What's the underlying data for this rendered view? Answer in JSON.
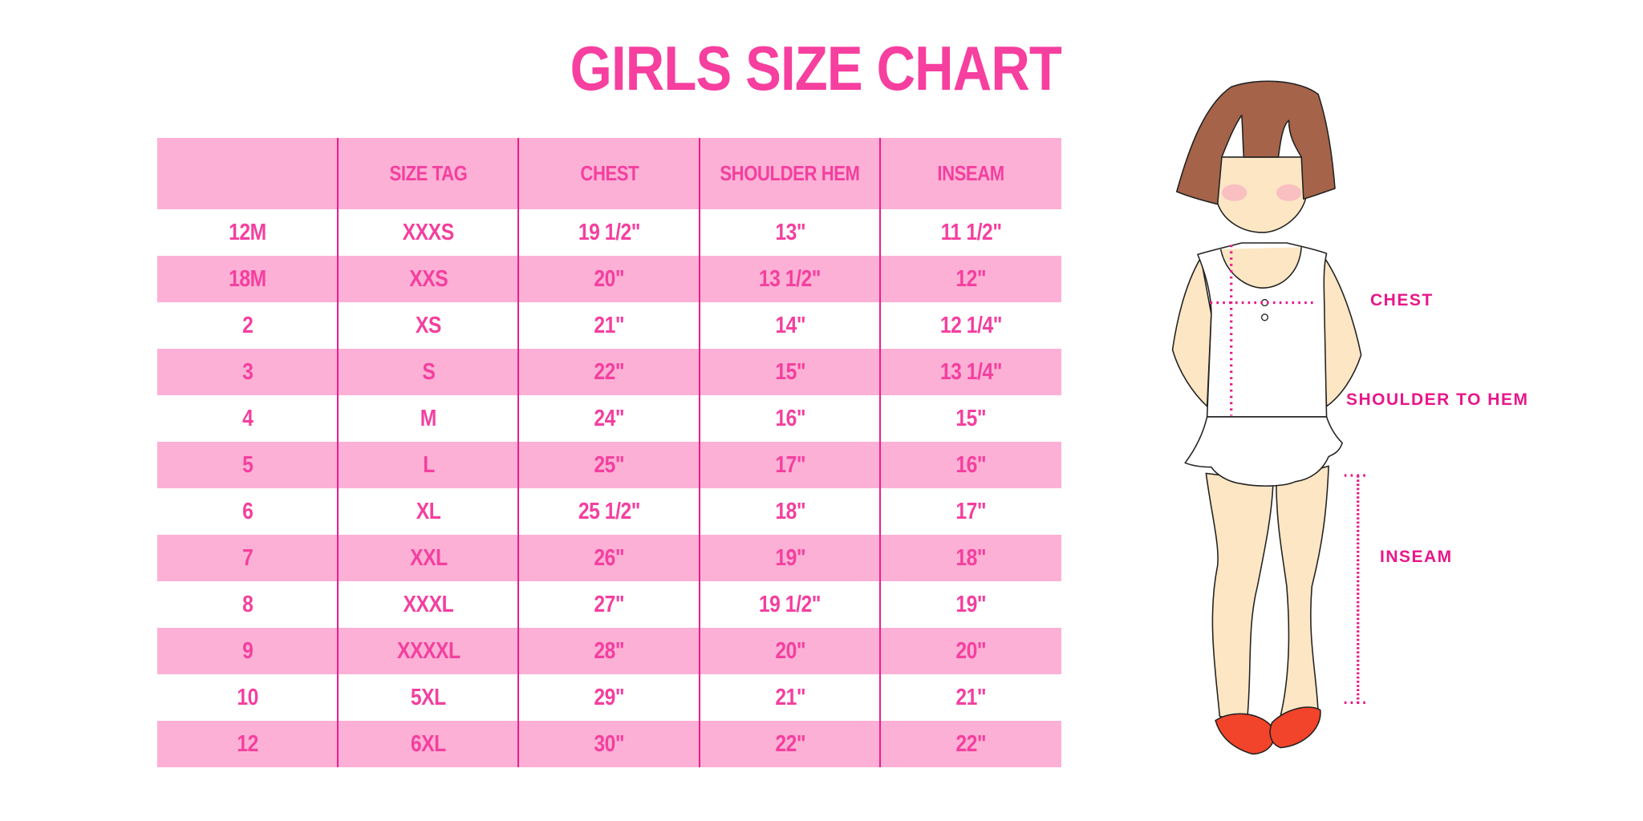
{
  "title": "GIRLS SIZE CHART",
  "colors": {
    "title_text": "#F63F9F",
    "row_pink": "#FDB0D5",
    "divider": "#EC1C8E",
    "label_text": "#E8178A",
    "hair": "#A5634A",
    "skin": "#FDE6C4",
    "shoe": "#F2442A"
  },
  "table": {
    "headers": [
      "",
      "SIZE TAG",
      "CHEST",
      "SHOULDER HEM",
      "INSEAM"
    ],
    "rows": [
      [
        "12M",
        "XXXS",
        "19 1/2\"",
        "13\"",
        "11 1/2\""
      ],
      [
        "18M",
        "XXS",
        "20\"",
        "13 1/2\"",
        "12\""
      ],
      [
        "2",
        "XS",
        "21\"",
        "14\"",
        "12 1/4\""
      ],
      [
        "3",
        "S",
        "22\"",
        "15\"",
        "13 1/4\""
      ],
      [
        "4",
        "M",
        "24\"",
        "16\"",
        "15\""
      ],
      [
        "5",
        "L",
        "25\"",
        "17\"",
        "16\""
      ],
      [
        "6",
        "XL",
        "25 1/2\"",
        "18\"",
        "17\""
      ],
      [
        "7",
        "XXL",
        "26\"",
        "19\"",
        "18\""
      ],
      [
        "8",
        "XXXL",
        "27\"",
        "19 1/2\"",
        "19\""
      ],
      [
        "9",
        "XXXXL",
        "28\"",
        "20\"",
        "20\""
      ],
      [
        "10",
        "5XL",
        "29\"",
        "21\"",
        "21\""
      ],
      [
        "12",
        "6XL",
        "30\"",
        "22\"",
        "22\""
      ]
    ]
  },
  "figure": {
    "labels": {
      "chest": "CHEST",
      "shoulder_to_hem": "SHOULDER TO HEM",
      "inseam": "INSEAM"
    }
  }
}
